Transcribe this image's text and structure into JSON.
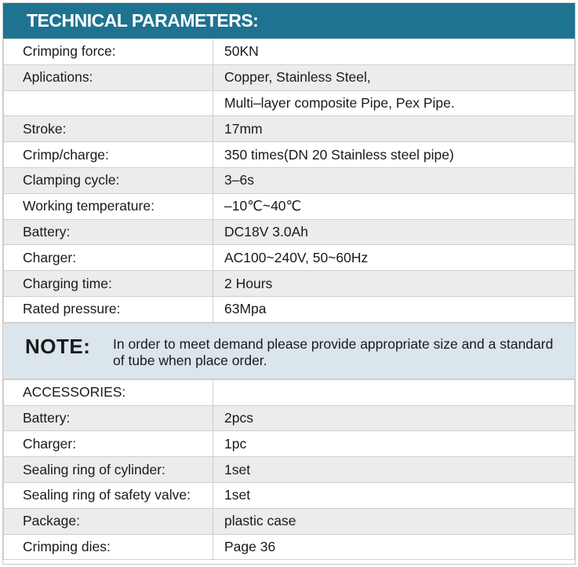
{
  "header": {
    "title": "TECHNICAL PARAMETERS:"
  },
  "params": [
    {
      "label": "Crimping force:",
      "value": "50KN"
    },
    {
      "label": "Aplications:",
      "value": "Copper, Stainless Steel,"
    },
    {
      "label": "",
      "value": "Multi–layer composite Pipe, Pex Pipe."
    },
    {
      "label": "Stroke:",
      "value": "17mm"
    },
    {
      "label": "Crimp/charge:",
      "value": "350 times(DN 20 Stainless steel pipe)"
    },
    {
      "label": "Clamping cycle:",
      "value": "3–6s"
    },
    {
      "label": "Working temperature:",
      "value": "–10℃~40℃"
    },
    {
      "label": "Battery:",
      "value": "DC18V 3.0Ah"
    },
    {
      "label": "Charger:",
      "value": "AC100~240V, 50~60Hz"
    },
    {
      "label": "Charging time:",
      "value": "2 Hours"
    },
    {
      "label": "Rated pressure:",
      "value": "63Mpa"
    }
  ],
  "note": {
    "label": "NOTE:",
    "text": "In order to meet demand please provide appropriate size and a standard of tube when place order."
  },
  "accessories": [
    {
      "label": "ACCESSORIES:",
      "value": ""
    },
    {
      "label": "Battery:",
      "value": "2pcs"
    },
    {
      "label": "Charger:",
      "value": "1pc"
    },
    {
      "label": "Sealing ring of cylinder:",
      "value": "1set"
    },
    {
      "label": "Sealing ring of safety valve:",
      "value": "1set"
    },
    {
      "label": "Package:",
      "value": "plastic case"
    },
    {
      "label": "Crimping dies:",
      "value": "Page 36"
    }
  ]
}
